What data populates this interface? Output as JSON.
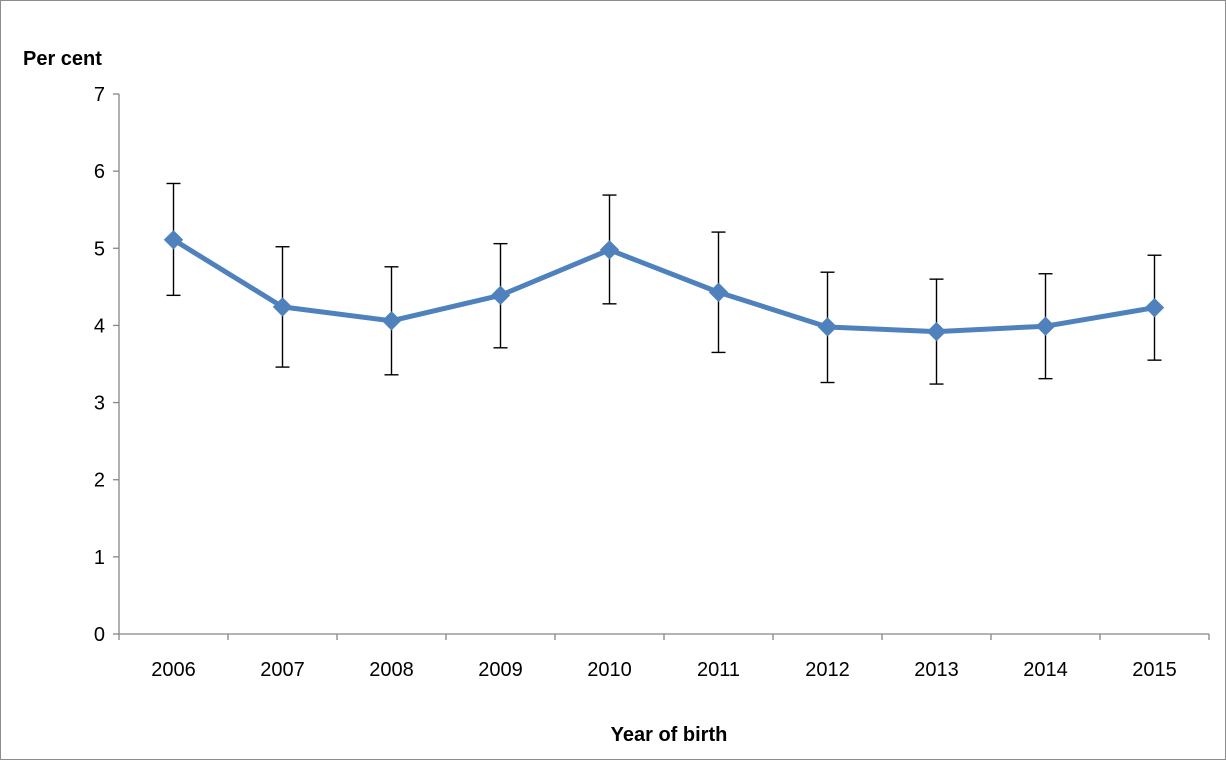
{
  "chart_data": {
    "type": "line",
    "title": "",
    "xlabel": "Year of birth",
    "ylabel": "Per cent",
    "categories": [
      "2006",
      "2007",
      "2008",
      "2009",
      "2010",
      "2011",
      "2012",
      "2013",
      "2014",
      "2015"
    ],
    "series": [
      {
        "values": [
          5.11,
          4.24,
          4.06,
          4.39,
          4.98,
          4.43,
          3.98,
          3.92,
          3.99,
          4.23
        ],
        "error_upper": [
          5.84,
          5.02,
          4.76,
          5.06,
          5.69,
          5.21,
          4.69,
          4.6,
          4.67,
          4.91
        ],
        "error_lower": [
          4.39,
          3.46,
          3.36,
          3.71,
          4.28,
          3.65,
          3.26,
          3.24,
          3.31,
          3.55
        ],
        "color": "#4f81bd",
        "marker": "diamond"
      }
    ],
    "yticks": [
      0,
      1,
      2,
      3,
      4,
      5,
      6,
      7
    ],
    "ylim": [
      0,
      7
    ],
    "grid": false,
    "legend": "none",
    "error_bar_color": "#000000"
  }
}
